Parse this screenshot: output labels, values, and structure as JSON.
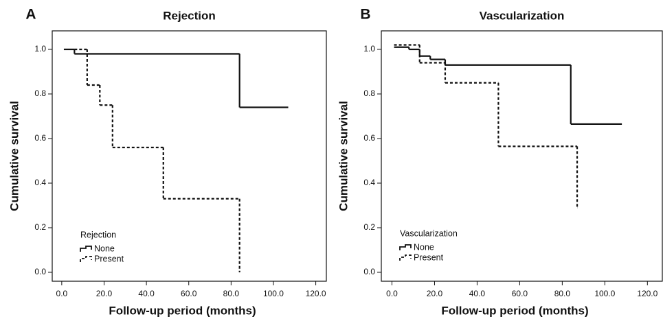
{
  "chart_data": [
    {
      "type": "step",
      "panel_label": "A",
      "title": "Rejection",
      "x_label": "Follow-up period (months)",
      "y_label": "Cumulative survival",
      "legend_title": "Rejection",
      "series": [
        {
          "name": "None",
          "color": "#111111",
          "line_style": "solid",
          "x": [
            1,
            6,
            84,
            107
          ],
          "values": [
            1.0,
            0.98,
            0.74,
            0.74
          ]
        },
        {
          "name": "Present",
          "color": "#111111",
          "line_style": "dashed",
          "x": [
            6,
            12,
            18,
            24,
            48,
            84
          ],
          "values": [
            1.0,
            0.84,
            0.75,
            0.56,
            0.33,
            0.0
          ]
        }
      ],
      "xlim": [
        -4.5,
        125
      ],
      "ylim": [
        -0.04,
        1.083
      ],
      "xticks": [
        {
          "value": 0,
          "label": "0.0"
        },
        {
          "value": 20,
          "label": "20.0"
        },
        {
          "value": 40,
          "label": "40.0"
        },
        {
          "value": 60,
          "label": "60.0"
        },
        {
          "value": 80,
          "label": "80.0"
        },
        {
          "value": 100,
          "label": "100.0"
        },
        {
          "value": 120,
          "label": "120.0"
        }
      ],
      "yticks": [
        {
          "value": 0,
          "label": "0.0"
        },
        0.2,
        0.4,
        0.6,
        0.8,
        {
          "value": 1,
          "label": "1.0"
        }
      ]
    },
    {
      "type": "step",
      "panel_label": "B",
      "title": "Vascularization",
      "x_label": "Follow-up period (months)",
      "y_label": "Cumulative survival",
      "legend_title": "Vascularization",
      "series": [
        {
          "name": "None",
          "color": "#111111",
          "line_style": "solid",
          "x": [
            1,
            8,
            13,
            18,
            25,
            84,
            108
          ],
          "values": [
            1.01,
            1.0,
            0.97,
            0.955,
            0.93,
            0.665,
            0.665
          ]
        },
        {
          "name": "Present",
          "color": "#111111",
          "line_style": "dashed",
          "x": [
            1,
            13,
            25,
            50,
            87
          ],
          "values": [
            1.02,
            0.94,
            0.85,
            0.565,
            0.29
          ]
        }
      ],
      "xlim": [
        -5,
        127
      ],
      "ylim": [
        -0.04,
        1.083
      ],
      "xticks": [
        {
          "value": 0,
          "label": "0.0"
        },
        {
          "value": 20,
          "label": "20.0"
        },
        {
          "value": 40,
          "label": "40.0"
        },
        {
          "value": 60,
          "label": "60.0"
        },
        {
          "value": 80,
          "label": "80.0"
        },
        {
          "value": 100,
          "label": "100.0"
        },
        {
          "value": 120,
          "label": "120.0"
        }
      ],
      "yticks": [
        {
          "value": 0,
          "label": "0.0"
        },
        0.2,
        0.4,
        0.6,
        0.8,
        {
          "value": 1,
          "label": "1.0"
        }
      ]
    }
  ]
}
